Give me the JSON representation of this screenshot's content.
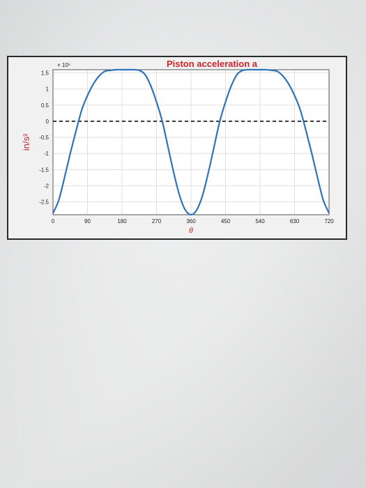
{
  "chart_data": {
    "type": "line",
    "title": "Piston acceleration a",
    "xlabel": "θ",
    "ylabel": "in/s²",
    "y_multiplier": "× 10⁵",
    "xlim": [
      0,
      720
    ],
    "ylim": [
      -2.9,
      1.6
    ],
    "xticks": [
      0,
      90,
      180,
      270,
      360,
      450,
      540,
      630,
      720
    ],
    "yticks": [
      1.5,
      1,
      0.5,
      0,
      -0.5,
      -1,
      -1.5,
      -2,
      -2.5
    ],
    "ytick_labels": [
      "1.5",
      "1",
      "0.5",
      "0",
      "-0.5",
      "-1",
      "-1.5",
      "-2",
      "-2.5"
    ],
    "grid": true,
    "series": [
      {
        "color": "#2f72b8",
        "x": [
          0,
          15,
          30,
          45,
          60,
          75,
          90,
          105,
          120,
          135,
          150,
          165,
          180,
          195,
          210,
          225,
          240,
          255,
          270,
          285,
          300,
          315,
          330,
          345,
          360,
          375,
          390,
          405,
          420,
          435,
          450,
          465,
          480,
          495,
          510,
          525,
          540,
          555,
          570,
          585,
          600,
          615,
          630,
          645,
          660,
          675,
          690,
          705,
          720
        ],
        "y": [
          -2.85,
          -2.45,
          -1.75,
          -1.0,
          -0.3,
          0.35,
          0.8,
          1.15,
          1.4,
          1.55,
          1.58,
          1.6,
          1.6,
          1.6,
          1.6,
          1.58,
          1.45,
          1.1,
          0.6,
          0.0,
          -0.8,
          -1.6,
          -2.3,
          -2.75,
          -2.9,
          -2.75,
          -2.3,
          -1.6,
          -0.8,
          0.0,
          0.6,
          1.1,
          1.45,
          1.58,
          1.6,
          1.6,
          1.6,
          1.6,
          1.58,
          1.55,
          1.4,
          1.15,
          0.8,
          0.35,
          -0.3,
          -1.0,
          -1.75,
          -2.45,
          -2.85
        ]
      },
      {
        "style": "dashed",
        "color": "#111111",
        "x": [
          0,
          720
        ],
        "y": [
          0,
          0
        ]
      }
    ]
  }
}
